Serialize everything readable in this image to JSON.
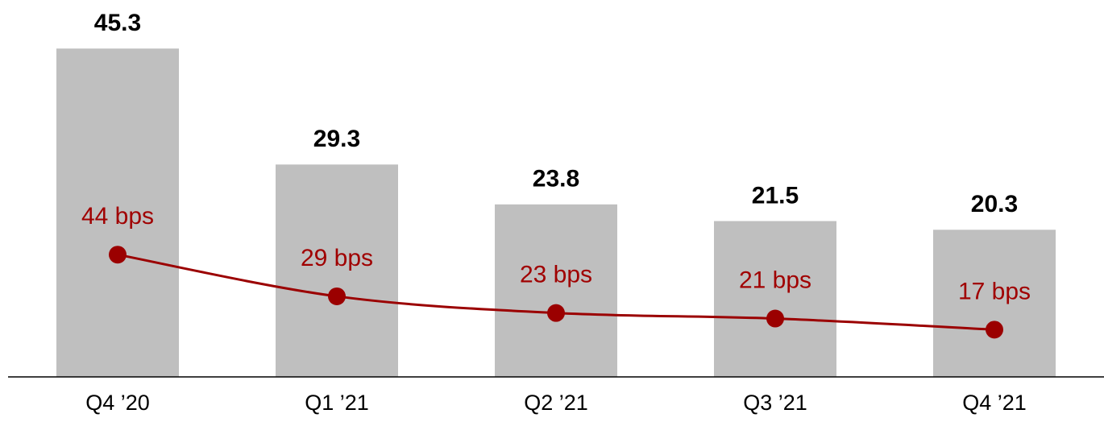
{
  "chart_data": {
    "type": "bar-line",
    "categories": [
      "Q4 ’20",
      "Q1 ’21",
      "Q2 ’21",
      "Q3 ’21",
      "Q4 ’21"
    ],
    "series": [
      {
        "type": "bar",
        "color": "#bfbfbf",
        "values": [
          45.3,
          29.3,
          23.8,
          21.5,
          20.3
        ]
      },
      {
        "type": "line",
        "axis": "y2",
        "color": "#9b0000",
        "values": [
          44,
          29,
          23,
          21,
          17
        ],
        "value_labels": [
          "44 bps",
          "29 bps",
          "23 bps",
          "21 bps",
          "17 bps"
        ]
      }
    ],
    "ylim": [
      0,
      46
    ],
    "y2lim": [
      0,
      120
    ]
  }
}
